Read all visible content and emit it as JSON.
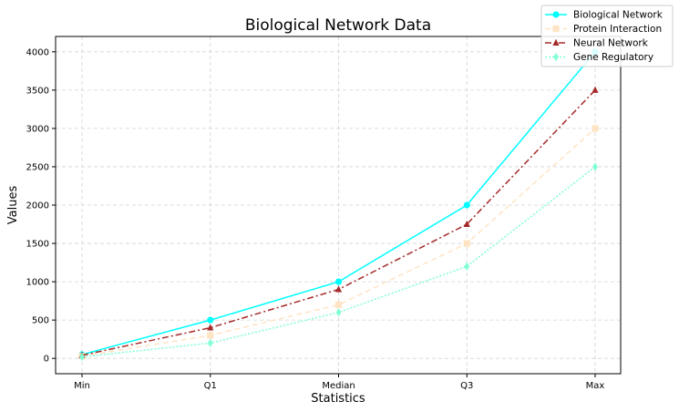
{
  "chart_data": {
    "type": "line",
    "title": "Biological Network Data",
    "xlabel": "Statistics",
    "ylabel": "Values",
    "categories": [
      "Min",
      "Q1",
      "Median",
      "Q3",
      "Max"
    ],
    "ylim": [
      -200,
      4200
    ],
    "yticks": [
      0,
      500,
      1000,
      1500,
      2000,
      2500,
      3000,
      3500,
      4000
    ],
    "grid": true,
    "legend_position": "top-right",
    "series": [
      {
        "name": "Biological Network",
        "values": [
          50,
          500,
          1000,
          2000,
          4000
        ],
        "color": "#00ffff",
        "marker": "circle",
        "linestyle": "solid"
      },
      {
        "name": "Protein Interaction",
        "values": [
          30,
          300,
          700,
          1500,
          3000
        ],
        "color": "#ffe4c4",
        "marker": "square",
        "linestyle": "dashed"
      },
      {
        "name": "Neural Network",
        "values": [
          40,
          400,
          900,
          1750,
          3500
        ],
        "color": "#a52a2a",
        "marker": "triangle",
        "linestyle": "dashdot"
      },
      {
        "name": "Gene Regulatory",
        "values": [
          20,
          200,
          600,
          1200,
          2500
        ],
        "color": "#7fffd4",
        "marker": "diamond",
        "linestyle": "dotted"
      }
    ]
  }
}
